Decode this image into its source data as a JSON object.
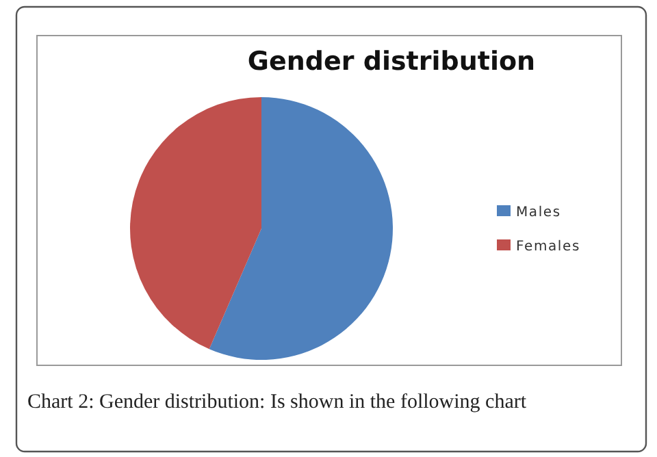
{
  "chart_data": {
    "type": "pie",
    "title": "Gender distribution",
    "categories": [
      "Males",
      "Females"
    ],
    "values": [
      56.5,
      43.5
    ],
    "colors": [
      "#4f81bd",
      "#c0504d"
    ],
    "legend": "right",
    "annotations": [
      "Chart 2: Gender distribution: Is shown in the following chart"
    ]
  }
}
